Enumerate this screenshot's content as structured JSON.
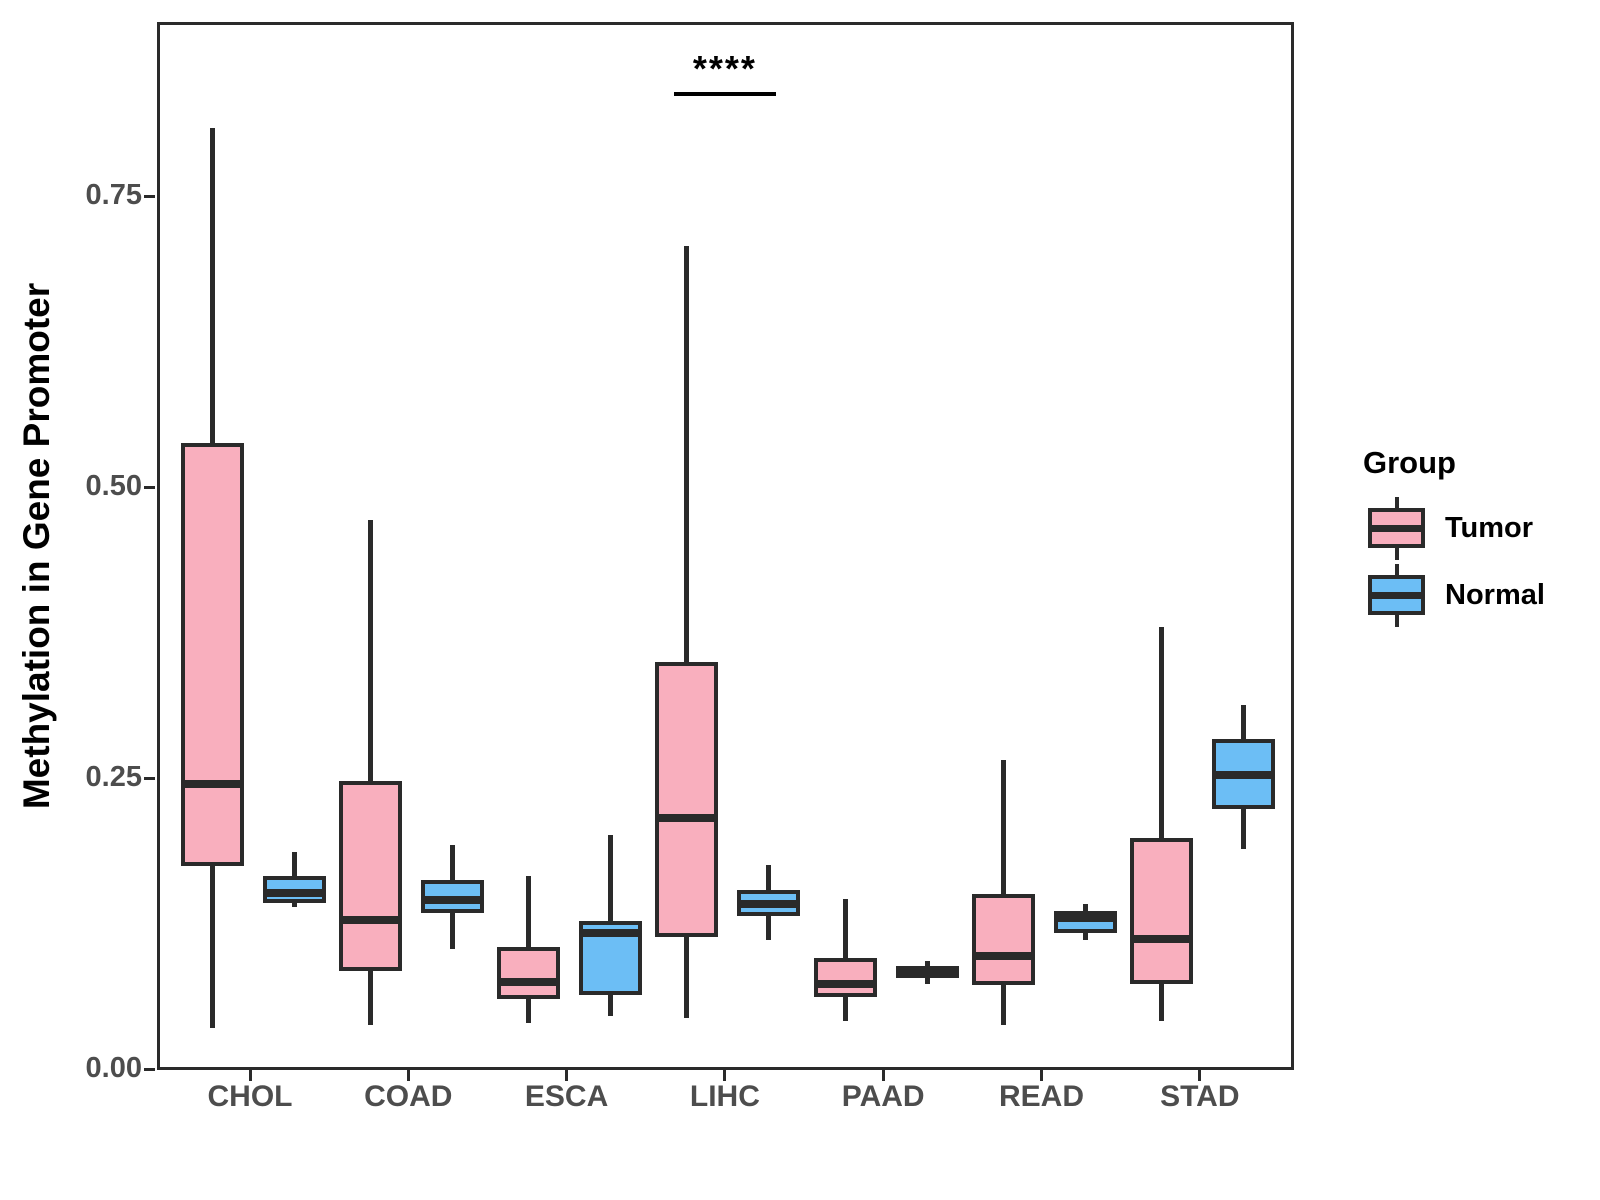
{
  "figure": {
    "y_axis_title": "Methylation in Gene Promoter",
    "significance_annotation": "****",
    "legend": {
      "title": "Group",
      "items": [
        {
          "label": "Tumor",
          "color": "#F9AFBE"
        },
        {
          "label": "Normal",
          "color": "#6CBEF5"
        }
      ]
    },
    "colors": {
      "tumor_fill": "#F9AFBE",
      "normal_fill": "#6CBEF5",
      "box_outline": "#2a2a2a",
      "tick_text": "#4d4d4d",
      "annotation_text": "#000000"
    }
  },
  "chart_data": {
    "type": "boxplot",
    "title": "",
    "xlabel": "",
    "ylabel": "Methylation in Gene Promoter",
    "ylim": [
      0,
      0.9
    ],
    "y_ticks": [
      {
        "value": 0.0,
        "label": "0.00"
      },
      {
        "value": 0.25,
        "label": "0.25"
      },
      {
        "value": 0.5,
        "label": "0.50"
      },
      {
        "value": 0.75,
        "label": "0.75"
      }
    ],
    "grid": false,
    "legend_position": "right",
    "categories": [
      "CHOL",
      "COAD",
      "ESCA",
      "LIHC",
      "PAAD",
      "READ",
      "STAD"
    ],
    "series": [
      {
        "name": "Tumor",
        "color": "#F9AFBE",
        "boxes": [
          {
            "category": "CHOL",
            "min": 0.038,
            "q1": 0.177,
            "median": 0.247,
            "q3": 0.54,
            "max": 0.811
          },
          {
            "category": "COAD",
            "min": 0.04,
            "q1": 0.087,
            "median": 0.131,
            "q3": 0.25,
            "max": 0.474
          },
          {
            "category": "ESCA",
            "min": 0.042,
            "q1": 0.063,
            "median": 0.077,
            "q3": 0.107,
            "max": 0.168
          },
          {
            "category": "LIHC",
            "min": 0.046,
            "q1": 0.116,
            "median": 0.218,
            "q3": 0.352,
            "max": 0.71
          },
          {
            "category": "PAAD",
            "min": 0.044,
            "q1": 0.064,
            "median": 0.076,
            "q3": 0.098,
            "max": 0.149
          },
          {
            "category": "READ",
            "min": 0.04,
            "q1": 0.075,
            "median": 0.1,
            "q3": 0.153,
            "max": 0.268
          },
          {
            "category": "STAD",
            "min": 0.044,
            "q1": 0.076,
            "median": 0.114,
            "q3": 0.201,
            "max": 0.382
          }
        ]
      },
      {
        "name": "Normal",
        "color": "#6CBEF5",
        "boxes": [
          {
            "category": "CHOL",
            "min": 0.142,
            "q1": 0.145,
            "median": 0.154,
            "q3": 0.168,
            "max": 0.189
          },
          {
            "category": "COAD",
            "min": 0.106,
            "q1": 0.137,
            "median": 0.148,
            "q3": 0.165,
            "max": 0.195
          },
          {
            "category": "ESCA",
            "min": 0.048,
            "q1": 0.066,
            "median": 0.119,
            "q3": 0.13,
            "max": 0.204
          },
          {
            "category": "LIHC",
            "min": 0.113,
            "q1": 0.134,
            "median": 0.144,
            "q3": 0.156,
            "max": 0.178
          },
          {
            "category": "PAAD",
            "min": 0.076,
            "q1": 0.081,
            "median": 0.086,
            "q3": 0.091,
            "max": 0.095
          },
          {
            "category": "READ",
            "min": 0.113,
            "q1": 0.119,
            "median": 0.132,
            "q3": 0.138,
            "max": 0.144
          },
          {
            "category": "STAD",
            "min": 0.192,
            "q1": 0.226,
            "median": 0.255,
            "q3": 0.286,
            "max": 0.315
          }
        ]
      }
    ],
    "annotations": [
      {
        "text": "****",
        "category": "LIHC",
        "line_y": 0.838,
        "spans": [
          "Tumor",
          "Normal"
        ]
      }
    ]
  }
}
